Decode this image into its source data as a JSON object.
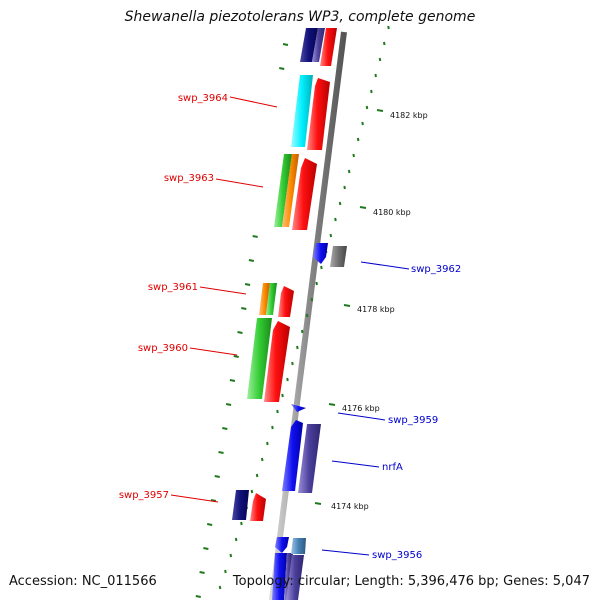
{
  "title": "Shewanella piezotolerans WP3, complete genome",
  "footer": {
    "accession": "Accession: NC_011566",
    "summary": "Topology: circular; Length: 5,396,476 bp; Genes: 5,047"
  },
  "colors": {
    "backbone": "#9a9a9a",
    "tick": "#1f7a1f",
    "label_left": "#e00000",
    "label_right": "#0000cc"
  },
  "axis": {
    "unit": "kbp",
    "ticks": [
      {
        "label": "4182 kbp"
      },
      {
        "label": "4180 kbp"
      },
      {
        "label": "4178 kbp"
      },
      {
        "label": "4176 kbp"
      },
      {
        "label": "4174 kbp"
      }
    ]
  },
  "labels": {
    "left": [
      {
        "text": "swp_3964"
      },
      {
        "text": "swp_3963"
      },
      {
        "text": "swp_3961"
      },
      {
        "text": "swp_3960"
      },
      {
        "text": "swp_3957"
      }
    ],
    "right": [
      {
        "text": "swp_3962"
      },
      {
        "text": "swp_3959"
      },
      {
        "text": "nrfA"
      },
      {
        "text": "swp_3956"
      }
    ]
  }
}
